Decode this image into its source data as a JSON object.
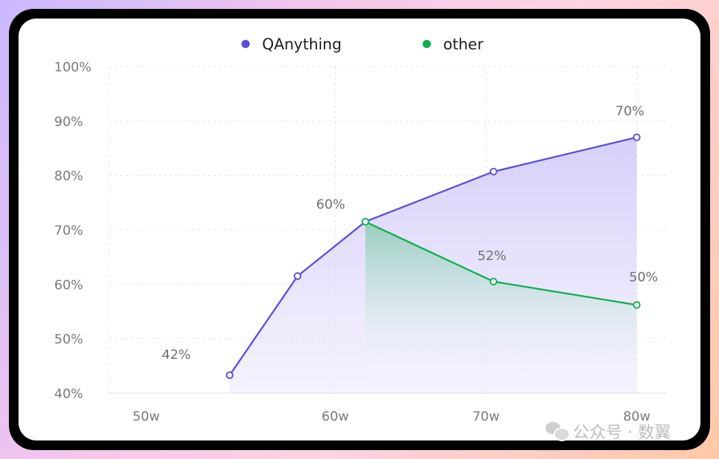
{
  "chart_data": {
    "type": "line",
    "x_categories": [
      "50w",
      "60w",
      "70w",
      "80w"
    ],
    "y_ticks": [
      "100%",
      "90%",
      "80%",
      "70%",
      "60%",
      "50%",
      "40%"
    ],
    "ylim": [
      40,
      100
    ],
    "grid": true,
    "legend_position": "top-center",
    "series": [
      {
        "name": "QAnything",
        "color": "#5b4fdd",
        "area_fill": true,
        "points": [
          {
            "x": "53w",
            "y": 43.3
          },
          {
            "x": "57.5w",
            "y": 61.5
          },
          {
            "x": "62w",
            "y": 71.5
          },
          {
            "x": "70.5w",
            "y": 80.7
          },
          {
            "x": "80w",
            "y": 87.0
          }
        ]
      },
      {
        "name": "other",
        "color": "#10b050",
        "area_fill": true,
        "points": [
          {
            "x": "62w",
            "y": 71.5
          },
          {
            "x": "70.5w",
            "y": 60.5
          },
          {
            "x": "80w",
            "y": 56.2
          }
        ]
      }
    ],
    "annotations": [
      "42%",
      "60%",
      "52%",
      "70%",
      "50%"
    ]
  },
  "watermark": {
    "icon": "wechat-icon",
    "text": "公众号 · 数翼"
  }
}
